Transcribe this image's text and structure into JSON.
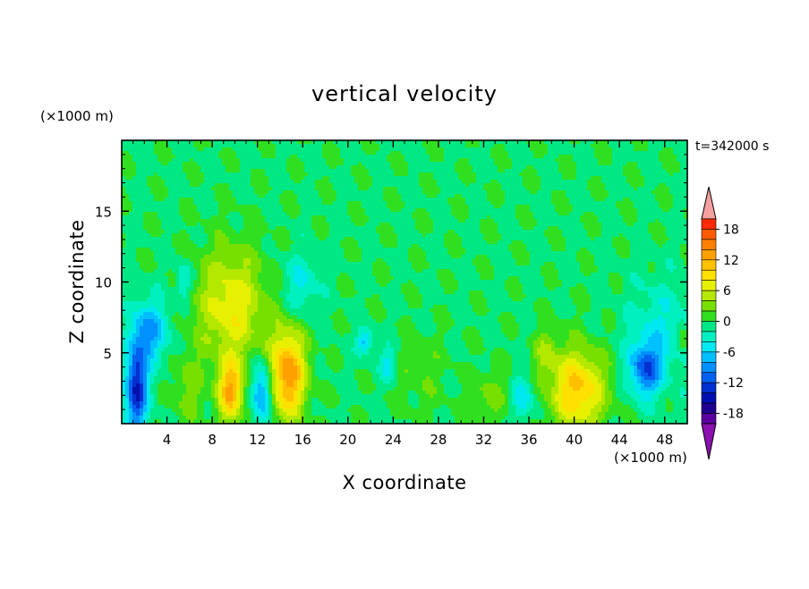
{
  "chart_data": {
    "type": "heatmap",
    "title": "vertical velocity",
    "xlabel": "X coordinate",
    "ylabel": "Z coordinate",
    "x_unit_label": "(×1000 m)",
    "y_unit_label": "(×1000 m)",
    "time_label": "t=342000 s",
    "xlim": [
      0,
      50
    ],
    "ylim": [
      0,
      20
    ],
    "x_ticks": [
      4,
      8,
      12,
      16,
      20,
      24,
      28,
      32,
      36,
      40,
      44,
      48
    ],
    "y_ticks": [
      5,
      10,
      15
    ],
    "colorbar": {
      "min": -20,
      "max": 20,
      "labels": [
        18,
        12,
        6,
        0,
        -6,
        -12,
        -18
      ],
      "levels": [
        {
          "from": 20,
          "to": 22,
          "color": "#f4a0a0"
        },
        {
          "from": 18,
          "to": 20,
          "color": "#ff2a00"
        },
        {
          "from": 16,
          "to": 18,
          "color": "#ff5a00"
        },
        {
          "from": 14,
          "to": 16,
          "color": "#ff7f00"
        },
        {
          "from": 12,
          "to": 14,
          "color": "#ffa000"
        },
        {
          "from": 10,
          "to": 12,
          "color": "#ffc000"
        },
        {
          "from": 8,
          "to": 10,
          "color": "#ffe000"
        },
        {
          "from": 6,
          "to": 8,
          "color": "#e6f000"
        },
        {
          "from": 4,
          "to": 6,
          "color": "#b4e800"
        },
        {
          "from": 2,
          "to": 4,
          "color": "#78e000"
        },
        {
          "from": 0,
          "to": 2,
          "color": "#30e020"
        },
        {
          "from": -2,
          "to": 0,
          "color": "#00e884"
        },
        {
          "from": -4,
          "to": -2,
          "color": "#00f0c0"
        },
        {
          "from": -6,
          "to": -4,
          "color": "#00e8f0"
        },
        {
          "from": -8,
          "to": -6,
          "color": "#00c0ff"
        },
        {
          "from": -10,
          "to": -8,
          "color": "#0090ff"
        },
        {
          "from": -12,
          "to": -10,
          "color": "#0060f0"
        },
        {
          "from": -14,
          "to": -12,
          "color": "#0030d0"
        },
        {
          "from": -16,
          "to": -14,
          "color": "#0010b0"
        },
        {
          "from": -18,
          "to": -16,
          "color": "#200090"
        },
        {
          "from": -20,
          "to": -18,
          "color": "#5a00a0"
        },
        {
          "from": -22,
          "to": -20,
          "color": "#8a10b0"
        }
      ]
    },
    "features": [
      {
        "x": 1.3,
        "z": 2.5,
        "amp": -14,
        "sx": 0.7,
        "sz": 2.2
      },
      {
        "x": 2.5,
        "z": 6.5,
        "amp": -8,
        "sx": 1.2,
        "sz": 1.5
      },
      {
        "x": 5.5,
        "z": 10.0,
        "amp": -5,
        "sx": 0.5,
        "sz": 1.0
      },
      {
        "x": 5.8,
        "z": 2.5,
        "amp": 3,
        "sx": 1.0,
        "sz": 1.8
      },
      {
        "x": 9.6,
        "z": 2.3,
        "amp": 12,
        "sx": 0.8,
        "sz": 1.5
      },
      {
        "x": 9.7,
        "z": 8.3,
        "amp": 8,
        "sx": 2.2,
        "sz": 2.8
      },
      {
        "x": 12.4,
        "z": 2.2,
        "amp": -10,
        "sx": 0.6,
        "sz": 1.5
      },
      {
        "x": 14.7,
        "z": 3.5,
        "amp": 14,
        "sx": 1.1,
        "sz": 2.2
      },
      {
        "x": 15.8,
        "z": 9.8,
        "amp": -4,
        "sx": 1.2,
        "sz": 1.6
      },
      {
        "x": 21.5,
        "z": 5.8,
        "amp": -7,
        "sx": 0.5,
        "sz": 0.6
      },
      {
        "x": 23.5,
        "z": 4.2,
        "amp": -5,
        "sx": 0.5,
        "sz": 0.8
      },
      {
        "x": 26.5,
        "z": 3.5,
        "amp": 2,
        "sx": 1.5,
        "sz": 2.0
      },
      {
        "x": 32.5,
        "z": 2.0,
        "amp": 3,
        "sx": 1.2,
        "sz": 1.4
      },
      {
        "x": 35.5,
        "z": 1.8,
        "amp": -5,
        "sx": 0.7,
        "sz": 1.2
      },
      {
        "x": 37.5,
        "z": 5.0,
        "amp": 4,
        "sx": 0.7,
        "sz": 1.2
      },
      {
        "x": 40.3,
        "z": 2.4,
        "amp": 11,
        "sx": 1.7,
        "sz": 2.0
      },
      {
        "x": 46.3,
        "z": 3.8,
        "amp": -10,
        "sx": 1.0,
        "sz": 1.3
      },
      {
        "x": 47.5,
        "z": 6.5,
        "amp": -4,
        "sx": 2.0,
        "sz": 2.5
      },
      {
        "x": 49.7,
        "z": 5.8,
        "amp": 4,
        "sx": 0.4,
        "sz": 0.6
      }
    ],
    "grid": false
  }
}
